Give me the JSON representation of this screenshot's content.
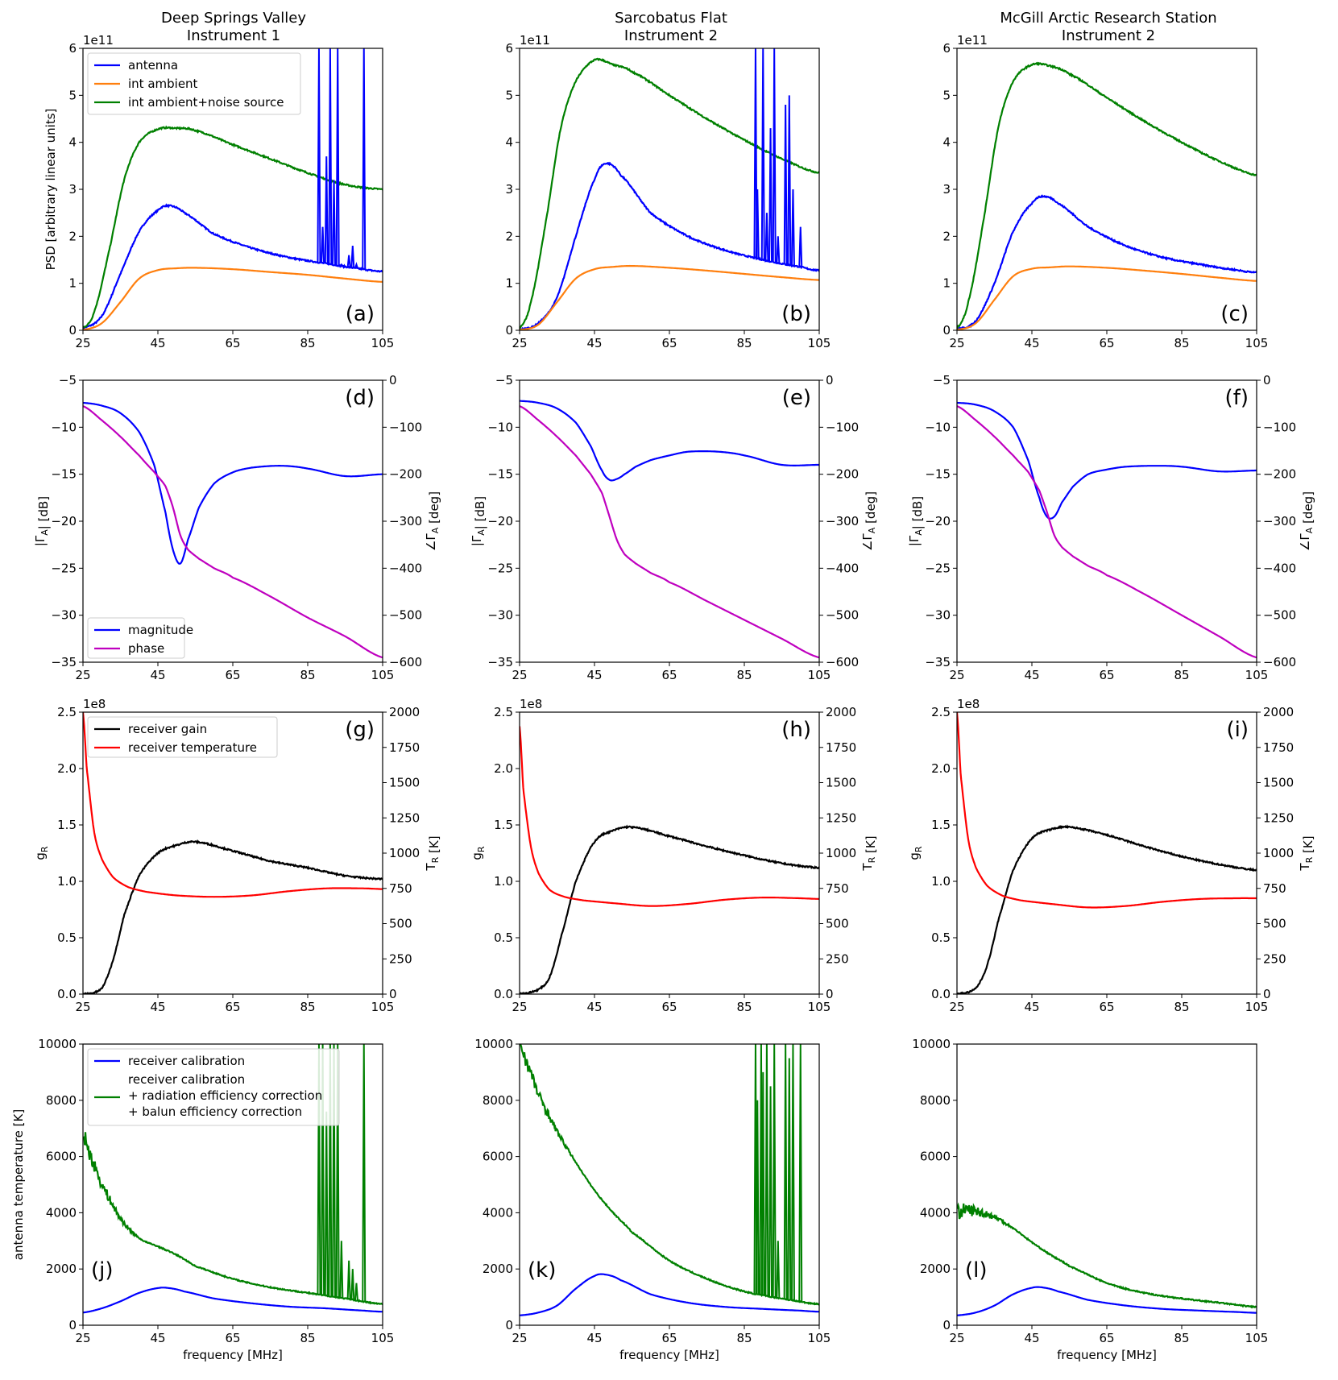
{
  "columns": [
    {
      "title1": "Deep Springs Valley",
      "title2": "Instrument 1"
    },
    {
      "title1": "Sarcobatus Flat",
      "title2": "Instrument 2"
    },
    {
      "title1": "McGill Arctic Research Station",
      "title2": "Instrument 2"
    }
  ],
  "chart_data": [
    {
      "type": "line",
      "row": 0,
      "panels": [
        "(a)",
        "(b)",
        "(c)"
      ],
      "ylabel": "PSD [arbitrary linear units]",
      "offset": "1e11",
      "xlim": [
        25,
        105
      ],
      "xticks": [
        25,
        45,
        65,
        85,
        105
      ],
      "ylim": [
        0,
        6
      ],
      "yticks": [
        "0",
        "1",
        "2",
        "3",
        "4",
        "5",
        "6"
      ],
      "legend": [
        "antenna",
        "int ambient",
        "int ambient+noise source"
      ],
      "legend_location": "top-left (panel a only)",
      "series": [
        {
          "name": "antenna",
          "color": "#0000ff",
          "x": [
            25,
            30,
            35,
            40,
            45,
            48,
            52,
            60,
            70,
            80,
            90,
            100,
            105
          ],
          "values_by_panel": [
            [
              0.05,
              0.3,
              1.2,
              2.1,
              2.55,
              2.65,
              2.5,
              2.05,
              1.75,
              1.55,
              1.42,
              1.3,
              1.25
            ],
            [
              0.02,
              0.15,
              0.7,
              2.0,
              3.2,
              3.55,
              3.3,
              2.5,
              2.0,
              1.7,
              1.5,
              1.35,
              1.27
            ],
            [
              0.03,
              0.2,
              1.0,
              2.1,
              2.7,
              2.85,
              2.7,
              2.2,
              1.8,
              1.55,
              1.4,
              1.28,
              1.23
            ]
          ]
        },
        {
          "name": "int ambient",
          "color": "#ff7f0e",
          "x": [
            25,
            30,
            35,
            40,
            45,
            50,
            55,
            65,
            75,
            85,
            95,
            105
          ],
          "values_by_panel": [
            [
              0.01,
              0.15,
              0.6,
              1.1,
              1.28,
              1.32,
              1.33,
              1.3,
              1.24,
              1.18,
              1.1,
              1.03
            ],
            [
              0.01,
              0.12,
              0.6,
              1.1,
              1.3,
              1.35,
              1.37,
              1.33,
              1.27,
              1.2,
              1.13,
              1.07
            ],
            [
              0.01,
              0.15,
              0.65,
              1.15,
              1.31,
              1.34,
              1.36,
              1.33,
              1.27,
              1.2,
              1.12,
              1.05
            ]
          ]
        },
        {
          "name": "int ambient+noise source",
          "color": "#008000",
          "x": [
            25,
            28,
            32,
            36,
            40,
            45,
            50,
            55,
            65,
            75,
            85,
            95,
            105
          ],
          "values_by_panel": [
            [
              0.05,
              0.4,
              1.7,
              3.2,
              4.0,
              4.28,
              4.3,
              4.25,
              3.95,
              3.65,
              3.35,
              3.1,
              3.0
            ],
            [
              0.05,
              0.6,
              2.3,
              4.3,
              5.3,
              5.75,
              5.65,
              5.5,
              5.0,
              4.5,
              4.05,
              3.65,
              3.35
            ],
            [
              0.05,
              0.6,
              2.3,
              4.3,
              5.3,
              5.65,
              5.62,
              5.45,
              4.95,
              4.45,
              4.0,
              3.6,
              3.3
            ]
          ]
        }
      ],
      "rfi_spikes_by_panel": [
        {
          "series": "antenna",
          "x": [
            88,
            89,
            90,
            91,
            92,
            93,
            94,
            96,
            97,
            98,
            100
          ],
          "peaks": [
            6.0,
            2.2,
            3.7,
            6.0,
            3.2,
            6.0,
            1.4,
            1.6,
            1.8,
            1.4,
            6.0
          ]
        },
        {
          "series": "antenna",
          "x": [
            88,
            88.5,
            90,
            91,
            92,
            93,
            94,
            96,
            97,
            98,
            100
          ],
          "peaks": [
            6.0,
            3.0,
            6.0,
            2.5,
            4.3,
            6.0,
            2.0,
            4.8,
            5.0,
            3.0,
            2.2
          ]
        },
        null
      ]
    },
    {
      "type": "line",
      "row": 1,
      "panels": [
        "(d)",
        "(e)",
        "(f)"
      ],
      "ylabel": "|Γ_A| [dB]",
      "ylabel_right": "∠Γ_A [deg]",
      "xlim": [
        25,
        105
      ],
      "xticks": [
        25,
        45,
        65,
        85,
        105
      ],
      "ylim": [
        -35,
        -5
      ],
      "yticks": [
        "−35",
        "−30",
        "−25",
        "−20",
        "−15",
        "−10",
        "−5"
      ],
      "ylim_right": [
        -600,
        0
      ],
      "yticks_right": [
        "−600",
        "−500",
        "−400",
        "−300",
        "−200",
        "−100",
        "0"
      ],
      "legend": [
        "magnitude",
        "phase"
      ],
      "legend_location": "bottom-left (panel d only)",
      "series": [
        {
          "name": "magnitude",
          "color": "#0000ff",
          "axis": "left",
          "x": [
            25,
            30,
            35,
            40,
            44,
            47,
            49,
            51,
            53,
            56,
            60,
            65,
            70,
            78,
            85,
            95,
            105
          ],
          "values_by_panel": [
            [
              -7.4,
              -7.7,
              -8.5,
              -10.5,
              -14,
              -19,
              -23,
              -24.5,
              -22,
              -18.5,
              -16,
              -14.8,
              -14.3,
              -14.1,
              -14.4,
              -15.2,
              -15.0
            ],
            [
              -7.2,
              -7.4,
              -8.0,
              -9.5,
              -12,
              -14.6,
              -15.6,
              -15.5,
              -15.0,
              -14.2,
              -13.5,
              -13.0,
              -12.6,
              -12.6,
              -13.0,
              -14.0,
              -14.0
            ],
            [
              -7.4,
              -7.6,
              -8.3,
              -10,
              -13.5,
              -17.5,
              -19.5,
              -19.5,
              -18,
              -16.3,
              -15.0,
              -14.5,
              -14.2,
              -14.1,
              -14.2,
              -14.7,
              -14.6
            ]
          ]
        },
        {
          "name": "phase",
          "color": "#bf00bf",
          "axis": "right",
          "x": [
            25,
            30,
            35,
            40,
            44,
            47,
            49,
            51,
            53,
            56,
            60,
            65,
            75,
            85,
            95,
            105
          ],
          "values_by_panel": [
            [
              -55,
              -85,
              -120,
              -160,
              -195,
              -225,
              -270,
              -330,
              -360,
              -380,
              -400,
              -420,
              -460,
              -505,
              -545,
              -590
            ],
            [
              -55,
              -85,
              -120,
              -160,
              -200,
              -240,
              -290,
              -340,
              -370,
              -390,
              -410,
              -430,
              -470,
              -510,
              -550,
              -590
            ],
            [
              -55,
              -85,
              -120,
              -160,
              -195,
              -235,
              -280,
              -330,
              -355,
              -375,
              -395,
              -415,
              -455,
              -500,
              -545,
              -590
            ]
          ]
        }
      ]
    },
    {
      "type": "line",
      "row": 2,
      "panels": [
        "(g)",
        "(h)",
        "(i)"
      ],
      "ylabel": "g_R",
      "ylabel_right": "T_R [K]",
      "offset": "1e8",
      "xlim": [
        25,
        105
      ],
      "xticks": [
        25,
        45,
        65,
        85,
        105
      ],
      "ylim": [
        0,
        2.5
      ],
      "yticks": [
        "0.0",
        "0.5",
        "1.0",
        "1.5",
        "2.0",
        "2.5"
      ],
      "ylim_right": [
        0,
        2000
      ],
      "yticks_right": [
        "0",
        "250",
        "500",
        "750",
        "1000",
        "1250",
        "1500",
        "1750",
        "2000"
      ],
      "legend": [
        "receiver gain",
        "receiver temperature"
      ],
      "legend_location": "top-left (panel g only)",
      "series": [
        {
          "name": "receiver gain",
          "color": "#000000",
          "axis": "left",
          "x": [
            25,
            30,
            33,
            36,
            40,
            45,
            50,
            55,
            65,
            75,
            85,
            95,
            105
          ],
          "values_by_panel": [
            [
              0.0,
              0.05,
              0.3,
              0.7,
              1.05,
              1.25,
              1.32,
              1.35,
              1.27,
              1.18,
              1.12,
              1.05,
              1.02
            ],
            [
              0.0,
              0.04,
              0.15,
              0.5,
              1.0,
              1.35,
              1.45,
              1.48,
              1.4,
              1.31,
              1.23,
              1.16,
              1.12
            ],
            [
              0.0,
              0.05,
              0.25,
              0.65,
              1.1,
              1.38,
              1.46,
              1.48,
              1.41,
              1.31,
              1.22,
              1.15,
              1.1
            ]
          ]
        },
        {
          "name": "receiver temperature",
          "color": "#ff0000",
          "axis": "right",
          "x": [
            25,
            26,
            28,
            30,
            33,
            37,
            42,
            50,
            60,
            70,
            80,
            90,
            100,
            105
          ],
          "values_by_panel": [
            [
              2000,
              1600,
              1150,
              960,
              830,
              760,
              725,
              700,
              690,
              700,
              730,
              750,
              750,
              745
            ],
            [
              1900,
              1450,
              1050,
              860,
              740,
              690,
              665,
              645,
              625,
              640,
              670,
              685,
              680,
              675
            ],
            [
              2000,
              1550,
              1100,
              900,
              770,
              700,
              665,
              640,
              615,
              625,
              655,
              675,
              680,
              680
            ]
          ]
        }
      ]
    },
    {
      "type": "line",
      "row": 3,
      "panels": [
        "(j)",
        "(k)",
        "(l)"
      ],
      "ylabel": "antenna temperature [K]",
      "xlabel": "frequency [MHz]",
      "xlim": [
        25,
        105
      ],
      "xticks": [
        25,
        45,
        65,
        85,
        105
      ],
      "ylim": [
        0,
        10000
      ],
      "yticks": [
        "0",
        "2000",
        "4000",
        "6000",
        "8000",
        "10000"
      ],
      "legend": [
        "receiver calibration",
        "receiver calibration",
        "+ radiation efficiency correction",
        "+ balun efficiency correction"
      ],
      "legend_location": "top-left (panel j only)",
      "series": [
        {
          "name": "receiver calibration",
          "color": "#0000ff",
          "x": [
            25,
            30,
            35,
            40,
            45,
            48,
            52,
            60,
            70,
            80,
            90,
            100,
            105
          ],
          "values_by_panel": [
            [
              450,
              600,
              850,
              1150,
              1320,
              1320,
              1200,
              950,
              780,
              660,
              600,
              520,
              480
            ],
            [
              350,
              450,
              700,
              1300,
              1750,
              1800,
              1600,
              1100,
              800,
              650,
              580,
              520,
              480
            ],
            [
              350,
              450,
              700,
              1100,
              1330,
              1340,
              1200,
              900,
              700,
              580,
              520,
              470,
              440
            ]
          ]
        },
        {
          "name": "receiver calibration + radiation efficiency correction + balun efficiency correction",
          "color": "#008000",
          "x": [
            25,
            27,
            30,
            35,
            40,
            45,
            50,
            55,
            65,
            75,
            85,
            95,
            105
          ],
          "values_by_panel": [
            [
              6800,
              6000,
              5000,
              3800,
              3100,
              2800,
              2500,
              2100,
              1650,
              1350,
              1150,
              950,
              750
            ],
            [
              10000,
              9300,
              8200,
              6900,
              5800,
              4800,
              4000,
              3300,
              2300,
              1650,
              1200,
              950,
              750
            ],
            [
              4000,
              4100,
              4050,
              3850,
              3450,
              2950,
              2500,
              2100,
              1500,
              1150,
              950,
              800,
              650
            ]
          ]
        }
      ],
      "rfi_spikes_by_panel": [
        {
          "series": "green",
          "x": [
            88,
            89,
            90,
            91,
            92,
            93,
            94,
            96,
            97,
            98,
            100
          ],
          "peaks": [
            10000,
            10000,
            7600,
            10000,
            10000,
            10000,
            3000,
            2300,
            2000,
            1500,
            10000
          ]
        },
        {
          "series": "green",
          "x": [
            88,
            88.5,
            89.5,
            90,
            91,
            92,
            93,
            94,
            96,
            97,
            98,
            100
          ],
          "peaks": [
            10000,
            8000,
            10000,
            9000,
            10000,
            8500,
            10000,
            3000,
            10000,
            9500,
            10000,
            10000
          ]
        },
        null
      ]
    }
  ]
}
